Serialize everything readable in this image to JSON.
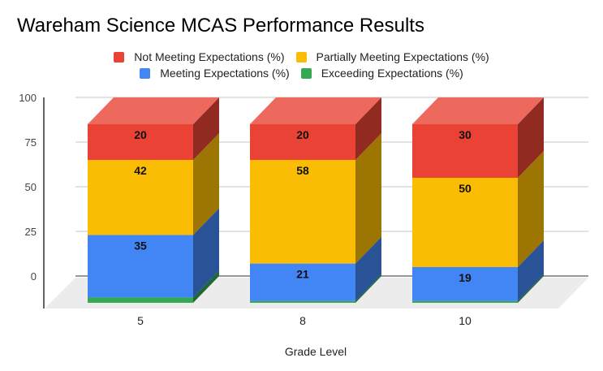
{
  "chart_data": {
    "type": "bar",
    "stacked": true,
    "three_d": true,
    "title": "Wareham Science MCAS Performance Results",
    "xlabel": "Grade Level",
    "ylabel": "",
    "categories": [
      "5",
      "8",
      "10"
    ],
    "ylim": [
      0,
      100
    ],
    "yticks": [
      0,
      25,
      50,
      75,
      100
    ],
    "grid": true,
    "legend_position": "top",
    "series": [
      {
        "name": "Exceeding Expectations (%)",
        "color": "#34A853",
        "values": [
          3,
          1,
          1
        ],
        "show_labels": false
      },
      {
        "name": "Meeting Expectations (%)",
        "color": "#4285F4",
        "values": [
          35,
          21,
          19
        ],
        "show_labels": true
      },
      {
        "name": "Partially Meeting Expectations (%)",
        "color": "#FBBC04",
        "values": [
          42,
          58,
          50
        ],
        "show_labels": true
      },
      {
        "name": "Not Meeting Expectations (%)",
        "color": "#EA4335",
        "values": [
          20,
          20,
          30
        ],
        "show_labels": true
      }
    ],
    "legend_order": [
      [
        "Not Meeting Expectations (%)",
        "Partially Meeting Expectations (%)"
      ],
      [
        "Meeting Expectations (%)",
        "Exceeding Expectations (%)"
      ]
    ]
  },
  "legend": {
    "row1": [
      {
        "label": "Not Meeting Expectations (%)",
        "color": "#EA4335"
      },
      {
        "label": "Partially Meeting Expectations (%)",
        "color": "#FBBC04"
      }
    ],
    "row2": [
      {
        "label": "Meeting Expectations (%)",
        "color": "#4285F4"
      },
      {
        "label": "Exceeding Expectations (%)",
        "color": "#34A853"
      }
    ]
  }
}
